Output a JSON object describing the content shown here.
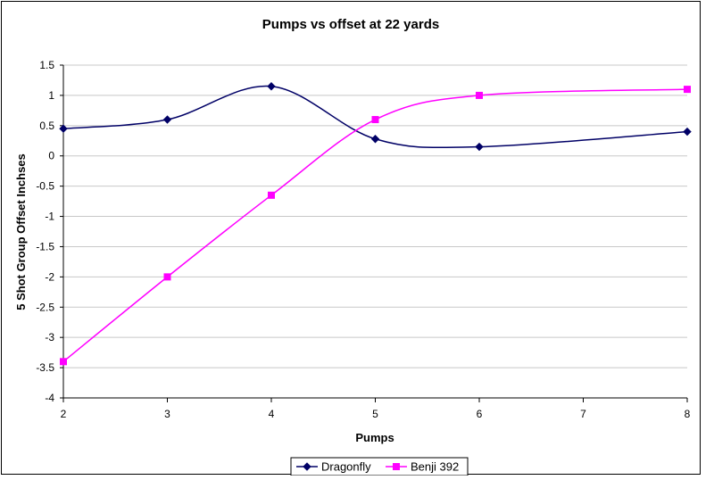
{
  "chart_data": {
    "type": "line",
    "title": "Pumps vs offset at 22 yards",
    "xlabel": "Pumps",
    "ylabel": "5 Shot Group Offset Inchses",
    "xlim": [
      2,
      8
    ],
    "ylim": [
      -4,
      1.5
    ],
    "x_ticks": [
      2,
      3,
      4,
      5,
      6,
      7,
      8
    ],
    "y_ticks": [
      1.5,
      1,
      0.5,
      0,
      -0.5,
      -1,
      -1.5,
      -2,
      -2.5,
      -3,
      -3.5,
      -4
    ],
    "grid": "horizontal",
    "legend_position": "bottom",
    "smoothed": true,
    "series": [
      {
        "name": "Dragonfly",
        "color": "#000066",
        "marker": "diamond",
        "x": [
          2,
          3,
          4,
          5,
          6,
          8
        ],
        "values": [
          0.45,
          0.6,
          1.15,
          0.28,
          0.15,
          0.4
        ]
      },
      {
        "name": "Benji 392",
        "color": "#ff00ff",
        "marker": "square",
        "x": [
          2,
          3,
          4,
          5,
          6,
          8
        ],
        "values": [
          -3.4,
          -2.0,
          -0.65,
          0.6,
          1.0,
          1.1
        ]
      }
    ]
  }
}
